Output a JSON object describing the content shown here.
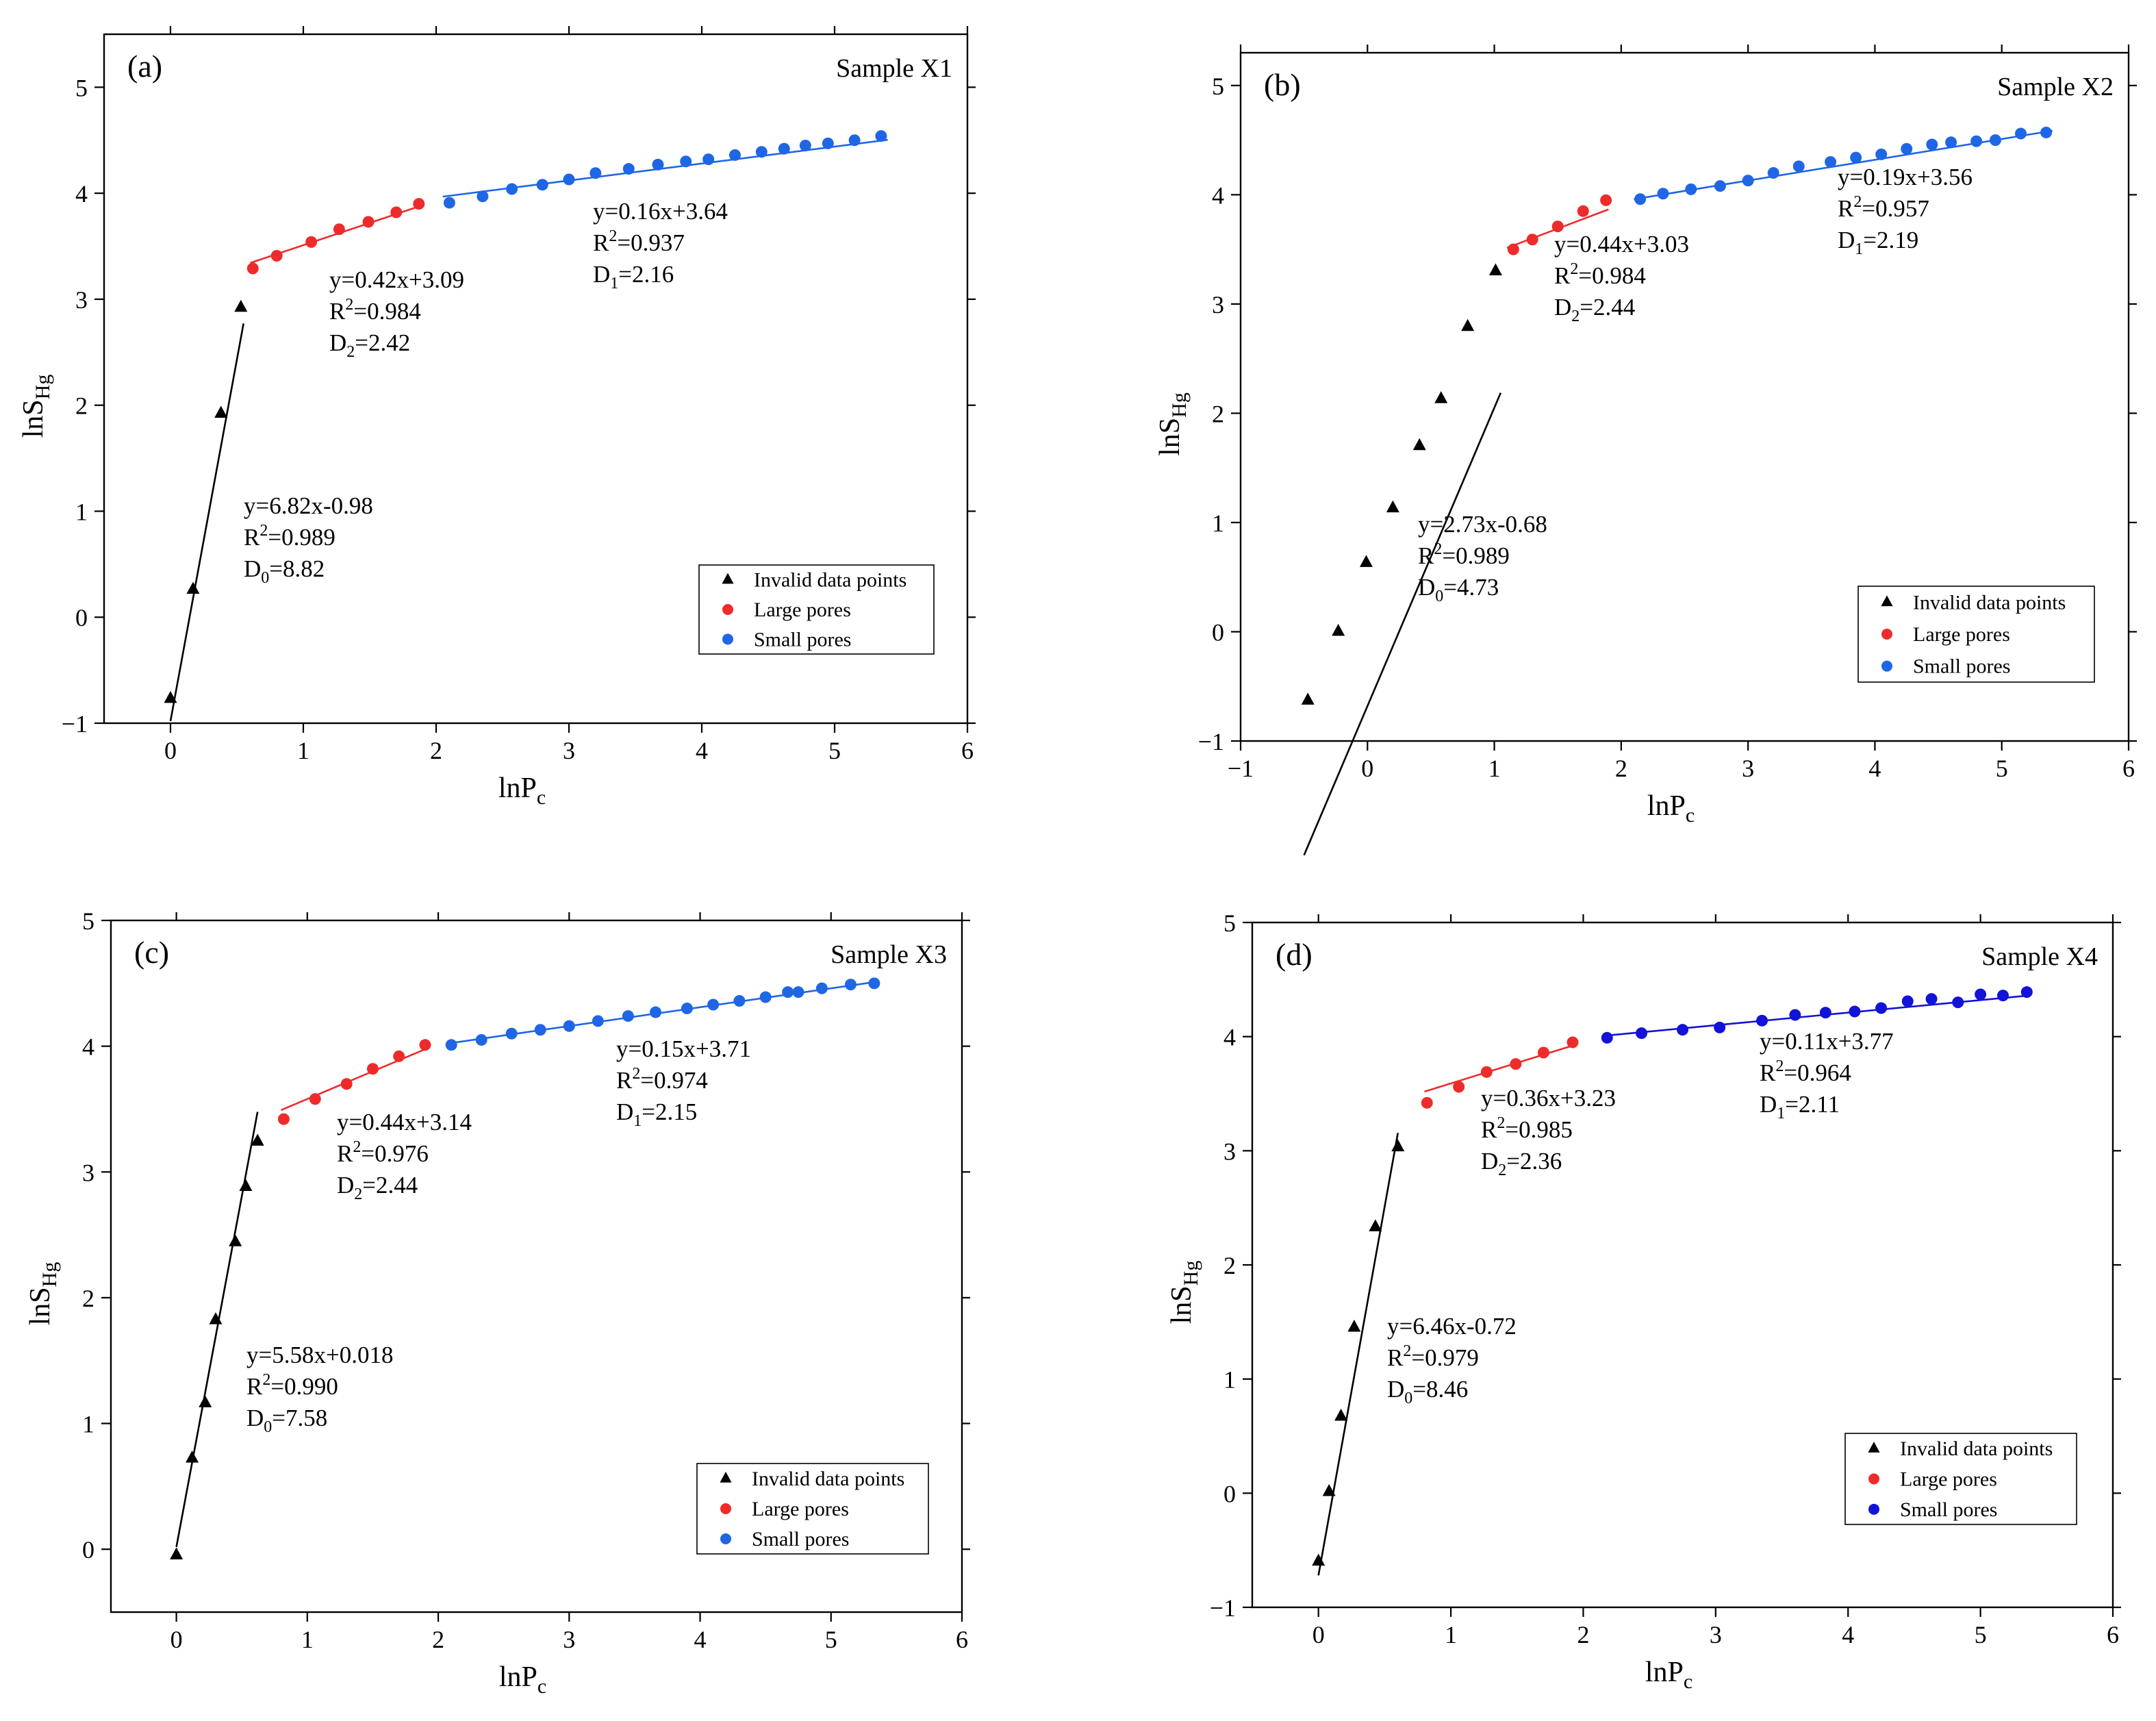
{
  "figure": {
    "colors": {
      "black": "#000000",
      "red": "#ee2b2b",
      "blue": "#1f66e5",
      "blue_alt": "#1212d8"
    }
  },
  "legend_labels": [
    "Invalid data points",
    "Large pores",
    "Small pores"
  ],
  "chart_data": [
    {
      "type": "scatter",
      "panel": "(a)",
      "title": "Sample X1",
      "xlabel": "lnP_c",
      "ylabel": "lnS_Hg",
      "xlim": [
        -0.5,
        6
      ],
      "ylim": [
        -1,
        5.5
      ],
      "xticks": [
        "0",
        "1",
        "2",
        "3",
        "4",
        "5",
        "6"
      ],
      "yticks": [
        "−1",
        "0",
        "1",
        "2",
        "3",
        "4",
        "5"
      ],
      "series": [
        {
          "name": "Invalid data points",
          "marker": "triangle",
          "color": "#000000",
          "x": [
            0.0,
            0.17,
            0.38,
            0.53
          ],
          "y": [
            -0.76,
            0.27,
            1.93,
            2.93
          ],
          "fit": {
            "slope": 6.82,
            "intercept": -0.98,
            "xrange": [
              0.0,
              0.55
            ]
          },
          "annotation": {
            "eq": "y=6.82x-0.98",
            "r2": "0.989",
            "d_sub": "0",
            "d_val": "8.82"
          }
        },
        {
          "name": "Large pores",
          "marker": "circle",
          "color": "#ee2b2b",
          "x": [
            0.62,
            0.8,
            1.06,
            1.27,
            1.49,
            1.7,
            1.87
          ],
          "y": [
            3.29,
            3.41,
            3.54,
            3.66,
            3.73,
            3.82,
            3.9
          ],
          "fit": {
            "slope": 0.42,
            "intercept": 3.09,
            "xrange": [
              0.6,
              1.9
            ]
          },
          "annotation": {
            "eq": "y=0.42x+3.09",
            "r2": "0.984",
            "d_sub": "2",
            "d_val": "2.42"
          }
        },
        {
          "name": "Small pores",
          "marker": "circle",
          "color": "#1f66e5",
          "x": [
            2.1,
            2.35,
            2.57,
            2.8,
            3.0,
            3.2,
            3.45,
            3.67,
            3.88,
            4.05,
            4.25,
            4.45,
            4.62,
            4.78,
            4.95,
            5.15,
            5.35
          ],
          "y": [
            3.91,
            3.97,
            4.04,
            4.08,
            4.13,
            4.19,
            4.23,
            4.27,
            4.3,
            4.32,
            4.36,
            4.39,
            4.42,
            4.45,
            4.47,
            4.5,
            4.54
          ],
          "fit": {
            "slope": 0.16,
            "intercept": 3.64,
            "xrange": [
              2.05,
              5.4
            ]
          },
          "annotation": {
            "eq": "y=0.16x+3.64",
            "r2": "0.937",
            "d_sub": "1",
            "d_val": "2.16"
          }
        }
      ]
    },
    {
      "type": "scatter",
      "panel": "(b)",
      "title": "Sample X2",
      "xlabel": "lnP_c",
      "ylabel": "lnS_Hg",
      "xlim": [
        -1,
        6
      ],
      "ylim": [
        -1,
        5.3
      ],
      "xticks": [
        "−1",
        "0",
        "1",
        "2",
        "3",
        "4",
        "5",
        "6"
      ],
      "yticks": [
        "−1",
        "0",
        "1",
        "2",
        "3",
        "4",
        "5"
      ],
      "series": [
        {
          "name": "Invalid data points",
          "marker": "triangle",
          "color": "#000000",
          "x": [
            -0.47,
            -0.23,
            -0.01,
            0.2,
            0.41,
            0.58,
            0.79,
            1.01
          ],
          "y": [
            -0.62,
            0.01,
            0.64,
            1.14,
            1.71,
            2.14,
            2.8,
            3.31
          ],
          "fit": {
            "slope": 2.73,
            "intercept": -0.68,
            "xrange": [
              -0.5,
              1.05
            ]
          },
          "annotation": {
            "eq": "y=2.73x-0.68",
            "r2": "0.989",
            "d_sub": "0",
            "d_val": "4.73"
          }
        },
        {
          "name": "Large pores",
          "marker": "circle",
          "color": "#ee2b2b",
          "x": [
            1.15,
            1.3,
            1.5,
            1.7,
            1.88
          ],
          "y": [
            3.5,
            3.59,
            3.71,
            3.85,
            3.95
          ],
          "fit": {
            "slope": 0.44,
            "intercept": 3.03,
            "xrange": [
              1.1,
              1.9
            ]
          },
          "annotation": {
            "eq": "y=0.44x+3.03",
            "r2": "0.984",
            "d_sub": "2",
            "d_val": "2.44"
          }
        },
        {
          "name": "Small pores",
          "marker": "circle",
          "color": "#1f66e5",
          "x": [
            2.15,
            2.33,
            2.55,
            2.78,
            3.0,
            3.2,
            3.4,
            3.65,
            3.85,
            4.05,
            4.25,
            4.45,
            4.6,
            4.8,
            4.95,
            5.15,
            5.35
          ],
          "y": [
            3.96,
            4.01,
            4.05,
            4.08,
            4.13,
            4.2,
            4.26,
            4.3,
            4.34,
            4.37,
            4.42,
            4.46,
            4.48,
            4.49,
            4.5,
            4.56,
            4.57
          ],
          "fit": {
            "slope": 0.19,
            "intercept": 3.56,
            "xrange": [
              2.1,
              5.4
            ]
          },
          "annotation": {
            "eq": "y=0.19x+3.56",
            "r2": "0.957",
            "d_sub": "1",
            "d_val": "2.19"
          }
        }
      ]
    },
    {
      "type": "scatter",
      "panel": "(c)",
      "title": "Sample X3",
      "xlabel": "lnP_c",
      "ylabel": "lnS_Hg",
      "xlim": [
        -0.5,
        6
      ],
      "ylim": [
        -0.5,
        5
      ],
      "xticks": [
        "0",
        "1",
        "2",
        "3",
        "4",
        "5",
        "6"
      ],
      "yticks": [
        "0",
        "1",
        "2",
        "3",
        "4",
        "5"
      ],
      "series": [
        {
          "name": "Invalid data points",
          "marker": "triangle",
          "color": "#000000",
          "x": [
            0.0,
            0.12,
            0.22,
            0.3,
            0.45,
            0.53,
            0.62
          ],
          "y": [
            -0.04,
            0.73,
            1.17,
            1.83,
            2.45,
            2.89,
            3.25
          ],
          "fit": {
            "slope": 5.58,
            "intercept": 0.018,
            "xrange": [
              0.0,
              0.62
            ]
          },
          "annotation": {
            "eq": "y=5.58x+0.018",
            "r2": "0.990",
            "d_sub": "0",
            "d_val": "7.58"
          }
        },
        {
          "name": "Large pores",
          "marker": "circle",
          "color": "#ee2b2b",
          "x": [
            0.82,
            1.06,
            1.3,
            1.5,
            1.7,
            1.9
          ],
          "y": [
            3.42,
            3.58,
            3.7,
            3.82,
            3.92,
            4.01
          ],
          "fit": {
            "slope": 0.44,
            "intercept": 3.14,
            "xrange": [
              0.8,
              1.9
            ]
          },
          "annotation": {
            "eq": "y=0.44x+3.14",
            "r2": "0.976",
            "d_sub": "2",
            "d_val": "2.44"
          }
        },
        {
          "name": "Small pores",
          "marker": "circle",
          "color": "#1f66e5",
          "x": [
            2.1,
            2.33,
            2.56,
            2.78,
            3.0,
            3.22,
            3.45,
            3.66,
            3.9,
            4.1,
            4.3,
            4.5,
            4.67,
            4.75,
            4.93,
            5.15,
            5.33
          ],
          "y": [
            4.01,
            4.05,
            4.1,
            4.13,
            4.16,
            4.2,
            4.24,
            4.27,
            4.3,
            4.33,
            4.36,
            4.39,
            4.43,
            4.43,
            4.46,
            4.49,
            4.5
          ],
          "fit": {
            "slope": 0.15,
            "intercept": 3.71,
            "xrange": [
              2.08,
              5.35
            ]
          },
          "annotation": {
            "eq": "y=0.15x+3.71",
            "r2": "0.974",
            "d_sub": "1",
            "d_val": "2.15"
          }
        }
      ]
    },
    {
      "type": "scatter",
      "panel": "(d)",
      "title": "Sample X4",
      "xlabel": "lnP_c",
      "ylabel": "lnS_Hg",
      "xlim": [
        -0.5,
        6
      ],
      "ylim": [
        -1,
        5
      ],
      "xticks": [
        "0",
        "1",
        "2",
        "3",
        "4",
        "5",
        "6"
      ],
      "yticks": [
        "−1",
        "0",
        "1",
        "2",
        "3",
        "4",
        "5"
      ],
      "series": [
        {
          "name": "Invalid data points",
          "marker": "triangle",
          "color": "#000000",
          "x": [
            0.0,
            0.08,
            0.17,
            0.27,
            0.43,
            0.6
          ],
          "y": [
            -0.59,
            0.02,
            0.68,
            1.46,
            2.34,
            3.04
          ],
          "fit": {
            "slope": 6.46,
            "intercept": -0.72,
            "xrange": [
              0.0,
              0.6
            ]
          },
          "annotation": {
            "eq": "y=6.46x-0.72",
            "r2": "0.979",
            "d_sub": "0",
            "d_val": "8.46"
          }
        },
        {
          "name": "Large pores",
          "marker": "circle",
          "color": "#ee2b2b",
          "x": [
            0.82,
            1.06,
            1.27,
            1.49,
            1.7,
            1.92
          ],
          "y": [
            3.42,
            3.56,
            3.69,
            3.76,
            3.86,
            3.95
          ],
          "fit": {
            "slope": 0.36,
            "intercept": 3.23,
            "xrange": [
              0.8,
              1.95
            ]
          },
          "annotation": {
            "eq": "y=0.36x+3.23",
            "r2": "0.985",
            "d_sub": "2",
            "d_val": "2.36"
          }
        },
        {
          "name": "Small pores",
          "marker": "circle",
          "color": "#1212d8",
          "x": [
            2.18,
            2.44,
            2.75,
            3.03,
            3.35,
            3.6,
            3.83,
            4.05,
            4.25,
            4.45,
            4.63,
            4.83,
            5.0,
            5.17,
            5.35
          ],
          "y": [
            3.99,
            4.03,
            4.06,
            4.08,
            4.14,
            4.19,
            4.21,
            4.22,
            4.25,
            4.31,
            4.33,
            4.3,
            4.37,
            4.36,
            4.39
          ],
          "fit": {
            "slope": 0.11,
            "intercept": 3.77,
            "xrange": [
              2.15,
              5.35
            ]
          },
          "annotation": {
            "eq": "y=0.11x+3.77",
            "r2": "0.964",
            "d_sub": "1",
            "d_val": "2.11"
          }
        }
      ]
    }
  ]
}
